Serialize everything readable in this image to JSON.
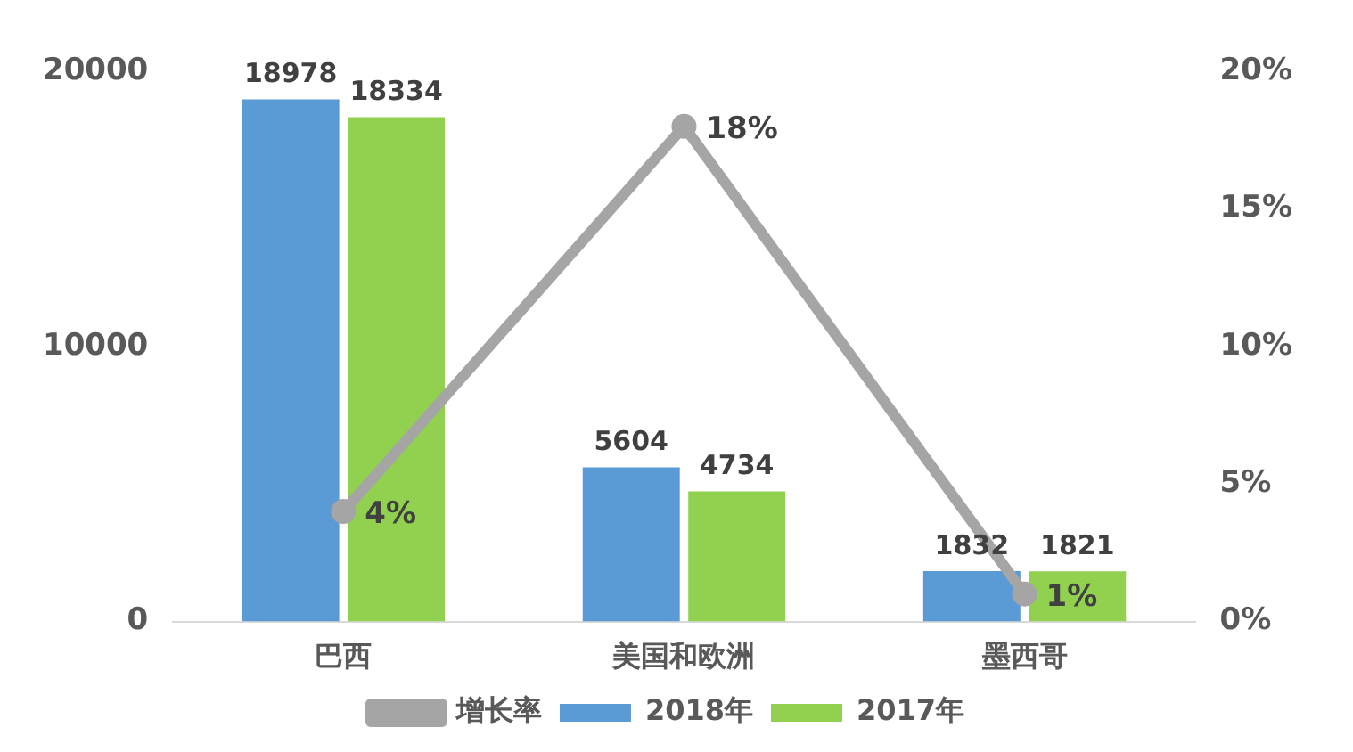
{
  "chart_data": {
    "type": "bar",
    "categories": [
      "巴西",
      "美国和欧洲",
      "墨西哥"
    ],
    "series": [
      {
        "name": "2018年",
        "color": "#5b9bd5",
        "values": [
          18978,
          5604,
          1832
        ]
      },
      {
        "name": "2017年",
        "color": "#92d050",
        "values": [
          18334,
          4734,
          1821
        ]
      },
      {
        "name": "增长率",
        "type": "line",
        "axis": "y2",
        "color": "#a5a5a5",
        "values": [
          4,
          18,
          1
        ],
        "value_labels": [
          "4%",
          "18%",
          "1%"
        ]
      }
    ],
    "ylim": [
      0,
      20000
    ],
    "yticks": [
      0,
      10000,
      20000
    ],
    "y2lim": [
      0,
      20
    ],
    "y2ticks": [
      {
        "value": 0,
        "label": "0%"
      },
      {
        "value": 5,
        "label": "5%"
      },
      {
        "value": 10,
        "label": "10%"
      },
      {
        "value": 15,
        "label": "15%"
      },
      {
        "value": 20,
        "label": "20%"
      }
    ],
    "data_labels": true,
    "grid": false,
    "legend": "bottom",
    "marker": "circle",
    "line_style": "solid"
  }
}
